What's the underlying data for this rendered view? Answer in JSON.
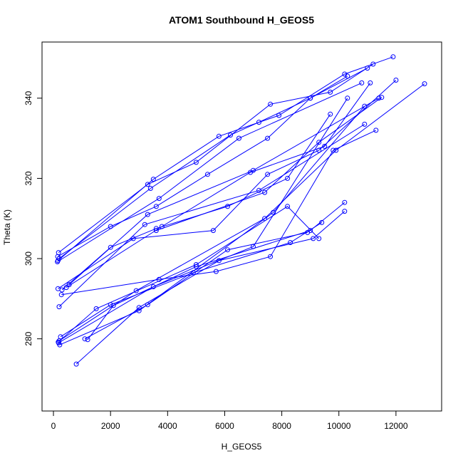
{
  "chart_data": {
    "type": "line",
    "title": "ATOM1 Southbound H_GEOS5",
    "xlabel": "H_GEOS5",
    "ylabel": "Theta (K)",
    "xlim": [
      -400,
      13600
    ],
    "ylim": [
      262,
      354
    ],
    "xticks": [
      0,
      2000,
      4000,
      6000,
      8000,
      10000,
      12000
    ],
    "yticks": [
      280,
      300,
      320,
      340
    ],
    "grid": false,
    "legend": "none",
    "series_color": "#0000ff",
    "markers": "open-circle",
    "series": [
      {
        "x": [
          150,
          2000,
          3600,
          5400,
          7500,
          9000,
          10300
        ],
        "y": [
          300.5,
          308,
          313,
          321,
          330,
          340,
          345.5
        ]
      },
      {
        "x": [
          180,
          3300,
          5000,
          7600,
          9700,
          11200
        ],
        "y": [
          301.5,
          318.5,
          324,
          338.5,
          341.5,
          348.5
        ]
      },
      {
        "x": [
          160,
          3500,
          5800,
          7900,
          10200,
          11900
        ],
        "y": [
          299.5,
          319.8,
          330.5,
          335.7,
          346,
          350.3
        ]
      },
      {
        "x": [
          200,
          3400,
          6200,
          7200,
          9000,
          11000
        ],
        "y": [
          300,
          317.5,
          330.8,
          334,
          340,
          347.5
        ]
      },
      {
        "x": [
          140,
          3700,
          6500,
          10800
        ],
        "y": [
          299.2,
          315,
          330,
          343.8
        ]
      },
      {
        "x": [
          160,
          2800,
          5600,
          7500,
          9300,
          12000
        ],
        "y": [
          292.5,
          305,
          307,
          321,
          327,
          344.5
        ]
      },
      {
        "x": [
          300,
          2000,
          3600,
          6100,
          8200,
          9700
        ],
        "y": [
          292.2,
          302.8,
          307.5,
          313,
          320,
          336
        ]
      },
      {
        "x": [
          450,
          3800,
          6900,
          9500,
          11100
        ],
        "y": [
          292.8,
          308,
          321.5,
          328,
          343.8
        ]
      },
      {
        "x": [
          550,
          3300,
          7000,
          11400
        ],
        "y": [
          293.5,
          311,
          322,
          340
        ]
      },
      {
        "x": [
          200,
          3200,
          7200,
          10900
        ],
        "y": [
          288,
          308.5,
          317,
          333.5
        ]
      },
      {
        "x": [
          200,
          2900,
          7400,
          9900,
          13000
        ],
        "y": [
          279.5,
          292,
          310,
          327,
          343.6
        ]
      },
      {
        "x": [
          220,
          3000,
          7700,
          10900
        ],
        "y": [
          278.5,
          287,
          311.5,
          338
        ]
      },
      {
        "x": [
          180,
          3500,
          7000,
          10300
        ],
        "y": [
          279,
          293,
          303,
          340
        ]
      },
      {
        "x": [
          170,
          1500,
          5000,
          8200,
          9300
        ],
        "y": [
          279.2,
          287.5,
          298.5,
          313,
          305
        ]
      },
      {
        "x": [
          250,
          2000,
          4900,
          8300,
          9400
        ],
        "y": [
          280.5,
          288.5,
          296.5,
          304,
          309
        ]
      },
      {
        "x": [
          1200,
          2100,
          5000,
          9000,
          10200
        ],
        "y": [
          279.8,
          288.3,
          298,
          307,
          314
        ]
      },
      {
        "x": [
          800,
          3000,
          5800,
          9100,
          10200
        ],
        "y": [
          273.7,
          287.8,
          299.5,
          305,
          311.8
        ]
      },
      {
        "x": [
          1100,
          3300,
          6100,
          8900
        ],
        "y": [
          280,
          288.5,
          302.2,
          306.5
        ]
      },
      {
        "x": [
          280,
          3700,
          5700,
          7600,
          9800,
          11300
        ],
        "y": [
          291,
          294.8,
          296.8,
          300.5,
          327,
          332
        ]
      },
      {
        "x": [
          3600,
          7400,
          9300,
          11500
        ],
        "y": [
          307,
          316.5,
          329,
          340.2
        ]
      }
    ]
  }
}
